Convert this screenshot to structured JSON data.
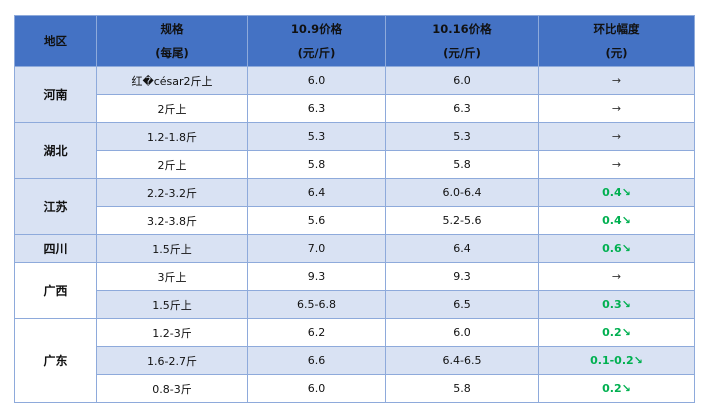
{
  "colors": {
    "header": "#4472c4",
    "row_alt": "#d9e2f3",
    "border": "#8eaadb",
    "decrease": "#00b050"
  },
  "header": {
    "region": "地区",
    "spec": [
      "规格",
      "(每尾)"
    ],
    "price1": [
      "10.9价格",
      "(元/斤)"
    ],
    "price2": [
      "10.16价格",
      "(元/斤)"
    ],
    "change": [
      "环比幅度",
      "(元)"
    ]
  },
  "groups": [
    {
      "region": "河南",
      "shade": "blue",
      "rows": [
        {
          "spec": "红�césar2斤上",
          "p1": "6.0",
          "p2": "6.0",
          "change": "→",
          "trend": "flat"
        },
        {
          "spec": "2斤上",
          "p1": "6.3",
          "p2": "6.3",
          "change": "→",
          "trend": "flat"
        }
      ]
    },
    {
      "region": "湖北",
      "shade": "blue",
      "rows": [
        {
          "spec": "1.2-1.8斤",
          "p1": "5.3",
          "p2": "5.3",
          "change": "→",
          "trend": "flat"
        },
        {
          "spec": "2斤上",
          "p1": "5.8",
          "p2": "5.8",
          "change": "→",
          "trend": "flat"
        }
      ]
    },
    {
      "region": "江苏",
      "shade": "blue",
      "rows": [
        {
          "spec": "2.2-3.2斤",
          "p1": "6.4",
          "p2": "6.0-6.4",
          "change": "0.4↘",
          "trend": "down"
        },
        {
          "spec": "3.2-3.8斤",
          "p1": "5.6",
          "p2": "5.2-5.6",
          "change": "0.4↘",
          "trend": "down"
        }
      ]
    },
    {
      "region": "四川",
      "shade": "blue",
      "rows": [
        {
          "spec": "1.5斤上",
          "p1": "7.0",
          "p2": "6.4",
          "change": "0.6↘",
          "trend": "down"
        }
      ]
    },
    {
      "region": "广西",
      "shade": "white",
      "rows": [
        {
          "spec": "3斤上",
          "p1": "9.3",
          "p2": "9.3",
          "change": "→",
          "trend": "flat"
        },
        {
          "spec": "1.5斤上",
          "p1": "6.5-6.8",
          "p2": "6.5",
          "change": "0.3↘",
          "trend": "down"
        }
      ]
    },
    {
      "region": "广东",
      "shade": "white",
      "rows": [
        {
          "spec": "1.2-3斤",
          "p1": "6.2",
          "p2": "6.0",
          "change": "0.2↘",
          "trend": "down"
        },
        {
          "spec": "1.6-2.7斤",
          "p1": "6.6",
          "p2": "6.4-6.5",
          "change": "0.1-0.2↘",
          "trend": "down"
        },
        {
          "spec": "0.8-3斤",
          "p1": "6.0",
          "p2": "5.8",
          "change": "0.2↘",
          "trend": "down"
        }
      ]
    }
  ]
}
